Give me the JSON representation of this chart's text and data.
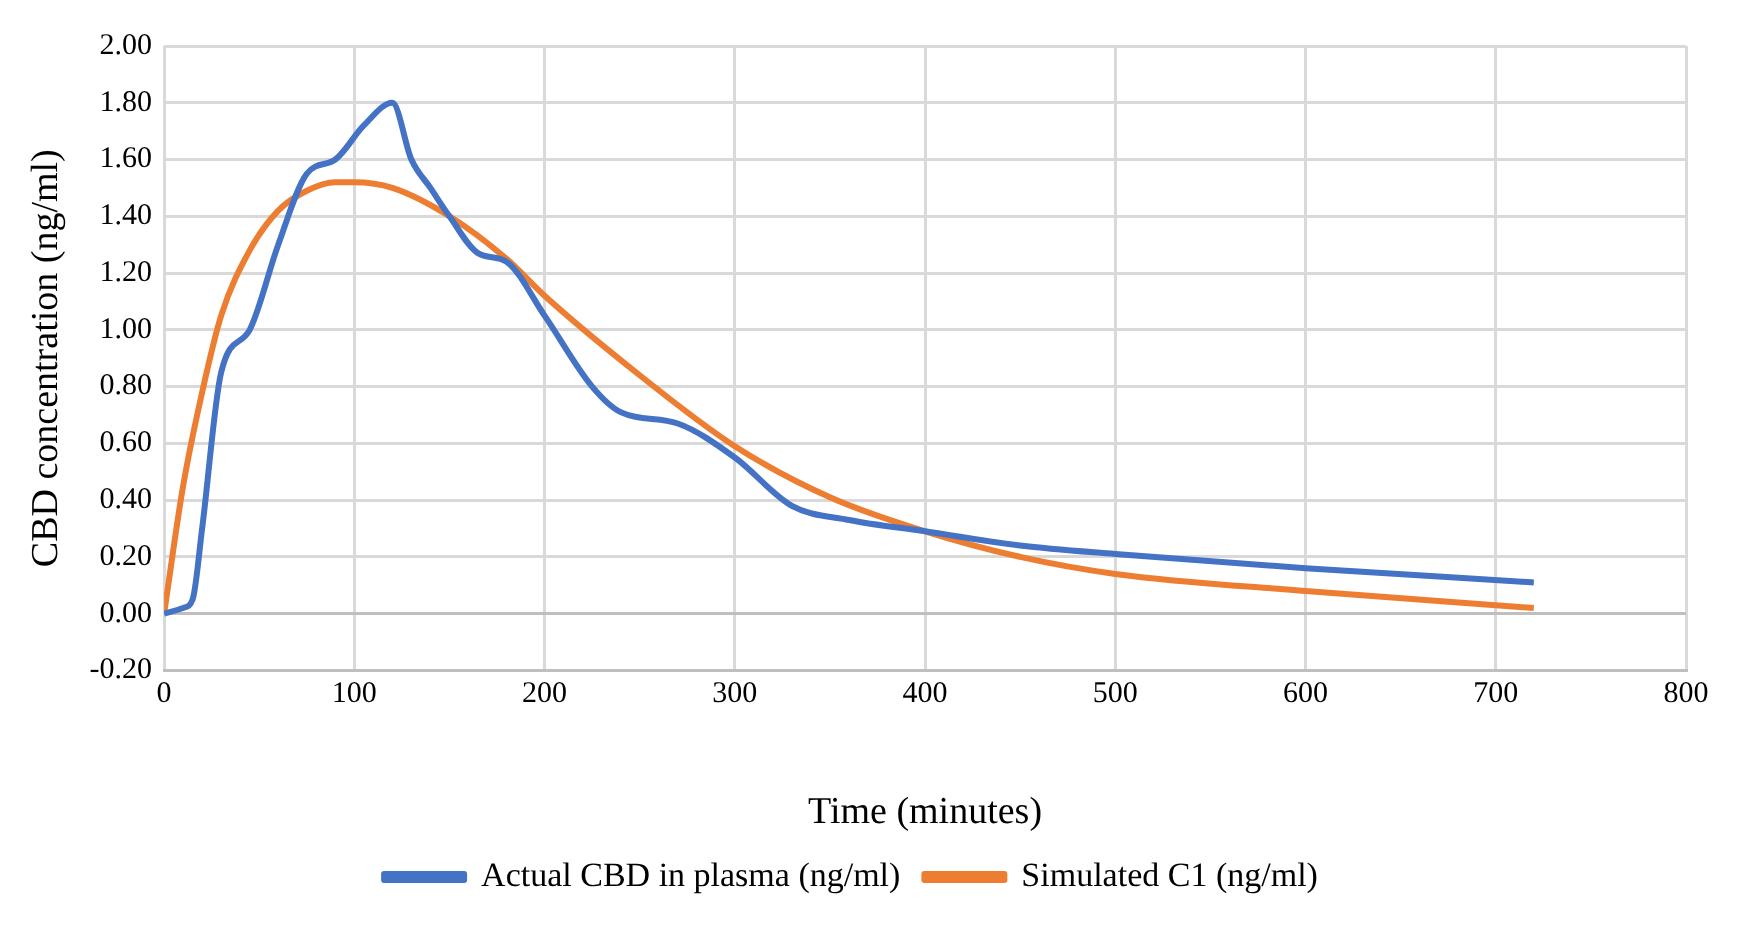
{
  "chart_data": {
    "type": "line",
    "xlabel": "Time (minutes)",
    "ylabel": "CBD concentration (ng/ml)",
    "xlim": [
      0,
      800
    ],
    "xticks": [
      0,
      100,
      200,
      300,
      400,
      500,
      600,
      700,
      800
    ],
    "ylim": [
      -0.2,
      2.0
    ],
    "yticks": [
      {
        "value": -0.2,
        "label": "-0.20"
      },
      {
        "value": 0,
        "label": "0.00"
      },
      {
        "value": 0.2,
        "label": "0.20"
      },
      {
        "value": 0.4,
        "label": "0.40"
      },
      {
        "value": 0.6,
        "label": "0.60"
      },
      {
        "value": 0.8,
        "label": "0.80"
      },
      {
        "value": 1.0,
        "label": "1.00"
      },
      {
        "value": 1.2,
        "label": "1.20"
      },
      {
        "value": 1.4,
        "label": "1.40"
      },
      {
        "value": 1.6,
        "label": "1.60"
      },
      {
        "value": 1.8,
        "label": "1.80"
      },
      {
        "value": 2.0,
        "label": "2.00"
      }
    ],
    "grid": true,
    "legend": "bottom",
    "marker": "none",
    "line_style": "solid",
    "series": [
      {
        "name": "Actual CBD in plasma (ng/ml)",
        "color": "#4472c4",
        "x": [
          0,
          10,
          15,
          20,
          30,
          45,
          60,
          75,
          90,
          105,
          120,
          130,
          140,
          150,
          165,
          180,
          200,
          225,
          240,
          270,
          300,
          330,
          360,
          400,
          450,
          500,
          600,
          720
        ],
        "values": [
          0,
          0.02,
          0.05,
          0.3,
          0.85,
          1.0,
          1.3,
          1.55,
          1.6,
          1.72,
          1.8,
          1.6,
          1.5,
          1.4,
          1.27,
          1.24,
          1.05,
          0.8,
          0.71,
          0.67,
          0.55,
          0.38,
          0.33,
          0.29,
          0.24,
          0.21,
          0.16,
          0.11
        ]
      },
      {
        "name": "Simulated C1 (ng/ml)",
        "color": "#ed7d31",
        "x": [
          0,
          10,
          20,
          30,
          45,
          60,
          75,
          90,
          100,
          120,
          150,
          180,
          200,
          250,
          300,
          350,
          400,
          450,
          500,
          600,
          720
        ],
        "values": [
          0,
          0.45,
          0.78,
          1.05,
          1.28,
          1.42,
          1.49,
          1.52,
          1.52,
          1.5,
          1.4,
          1.25,
          1.12,
          0.84,
          0.59,
          0.41,
          0.29,
          0.2,
          0.14,
          0.08,
          0.02
        ]
      }
    ]
  }
}
